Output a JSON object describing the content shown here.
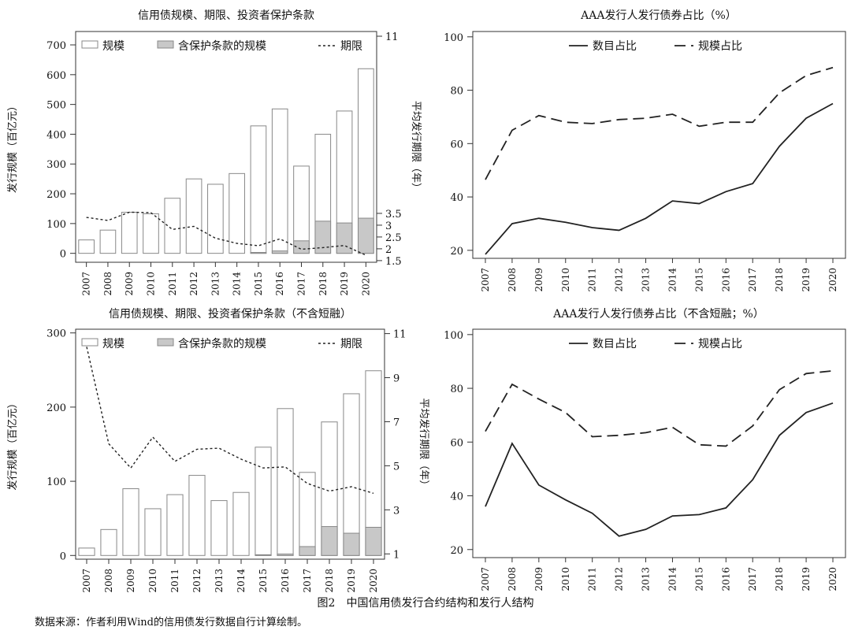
{
  "figure": {
    "caption": "图2　中国信用债发行合约结构和发行人结构",
    "source": "数据来源：作者利用Wind的信用债发行数据自行计算绘制。"
  },
  "colors": {
    "bar_fill": "#ffffff",
    "bar_stroke": "#888888",
    "protected_fill": "#c8c8c8",
    "line": "#222222"
  },
  "chart_data": [
    {
      "type": "bar",
      "title": "信用债规模、期限、投资者保护条款",
      "categories": [
        "2007",
        "2008",
        "2009",
        "2010",
        "2011",
        "2012",
        "2013",
        "2014",
        "2015",
        "2016",
        "2017",
        "2018",
        "2019",
        "2020"
      ],
      "ylabel": "发行规模（百亿元）",
      "ylim": [
        -30,
        745
      ],
      "yticks": [
        0,
        100,
        200,
        300,
        400,
        500,
        600,
        700
      ],
      "y2label": "平均发行期限（年）",
      "y2lim": [
        1.43,
        11.2
      ],
      "y2ticks": [
        1.5,
        2,
        2.5,
        3,
        3.5,
        11
      ],
      "legend": [
        "规模",
        "含保护条款的规模",
        "期限"
      ],
      "series": [
        {
          "name": "规模",
          "values": [
            45,
            78,
            138,
            133,
            185,
            250,
            232,
            268,
            428,
            485,
            293,
            400,
            478,
            620
          ]
        },
        {
          "name": "含保护条款的规模",
          "values": [
            0,
            0,
            0,
            0,
            0,
            0,
            0,
            0,
            3,
            8,
            42,
            108,
            102,
            118
          ]
        },
        {
          "name": "期限",
          "axis": "right",
          "values": [
            3.33,
            3.2,
            3.55,
            3.53,
            2.82,
            2.95,
            2.45,
            2.23,
            2.13,
            2.42,
            1.98,
            2.05,
            2.14,
            1.73
          ]
        }
      ]
    },
    {
      "type": "line",
      "title": "AAA发行人发行债券占比（%）",
      "x": [
        "2007",
        "2008",
        "2009",
        "2010",
        "2011",
        "2012",
        "2013",
        "2014",
        "2015",
        "2016",
        "2017",
        "2018",
        "2019",
        "2020"
      ],
      "ylim": [
        17,
        102
      ],
      "yticks": [
        20,
        40,
        60,
        80,
        100
      ],
      "legend": [
        "数目占比",
        "规模占比"
      ],
      "series": [
        {
          "name": "数目占比",
          "values": [
            18.5,
            30,
            32,
            30.5,
            28.5,
            27.5,
            32,
            38.5,
            37.5,
            42,
            45,
            59,
            69.5,
            75
          ]
        },
        {
          "name": "规模占比",
          "values": [
            46.5,
            65,
            70.5,
            68,
            67.5,
            69,
            69.5,
            71,
            66.5,
            68,
            68,
            79,
            85.5,
            88.5
          ]
        }
      ]
    },
    {
      "type": "bar",
      "title": "信用债规模、期限、投资者保护条款（不含短融）",
      "categories": [
        "2007",
        "2008",
        "2009",
        "2010",
        "2011",
        "2012",
        "2013",
        "2014",
        "2015",
        "2016",
        "2017",
        "2018",
        "2019",
        "2020"
      ],
      "ylabel": "发行规模（百亿元）",
      "ylim": [
        -5,
        305
      ],
      "yticks": [
        0,
        100,
        200,
        300
      ],
      "y2label": "平均发行期限（年）",
      "y2lim": [
        0.76,
        11.2
      ],
      "y2ticks": [
        1,
        3,
        5,
        7,
        9,
        11
      ],
      "legend": [
        "规模",
        "含保护条款的规模",
        "期限"
      ],
      "series": [
        {
          "name": "规模",
          "values": [
            10,
            35,
            90,
            63,
            82,
            108,
            74,
            85,
            146,
            198,
            112,
            180,
            218,
            249
          ]
        },
        {
          "name": "含保护条款的规模",
          "values": [
            0,
            0,
            0,
            0,
            0,
            0,
            0,
            0,
            1,
            2,
            12,
            39,
            30,
            38
          ]
        },
        {
          "name": "期限",
          "axis": "right",
          "values": [
            10.4,
            6,
            4.9,
            6.3,
            5.2,
            5.75,
            5.8,
            5.3,
            4.9,
            4.95,
            4.2,
            3.85,
            4.05,
            3.75
          ]
        }
      ]
    },
    {
      "type": "line",
      "title": "AAA发行人发行债券占比（不含短融；%）",
      "x": [
        "2007",
        "2008",
        "2009",
        "2010",
        "2011",
        "2012",
        "2013",
        "2014",
        "2015",
        "2016",
        "2017",
        "2018",
        "2019",
        "2020"
      ],
      "ylim": [
        17,
        102
      ],
      "yticks": [
        20,
        40,
        60,
        80,
        100
      ],
      "legend": [
        "数目占比",
        "规模占比"
      ],
      "series": [
        {
          "name": "数目占比",
          "values": [
            36,
            59.5,
            44,
            38.5,
            33.5,
            25,
            27.5,
            32.5,
            33,
            35.5,
            46,
            62.5,
            71,
            74.5
          ]
        },
        {
          "name": "规模占比",
          "values": [
            64,
            81.5,
            76,
            71,
            62,
            62.5,
            63.5,
            65.5,
            59,
            58.5,
            66,
            79.5,
            85.5,
            86.5
          ]
        }
      ]
    }
  ]
}
